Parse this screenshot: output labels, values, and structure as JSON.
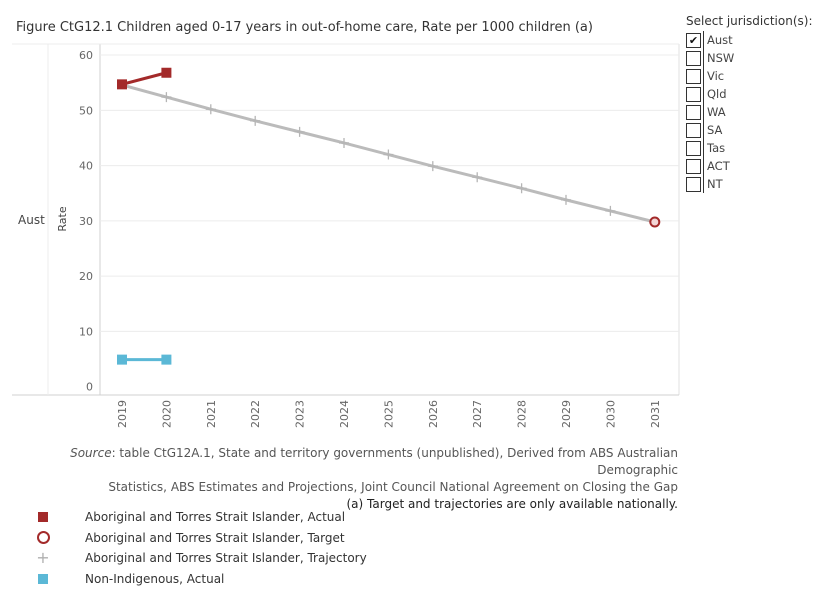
{
  "title": "Figure CtG12.1 Children aged 0-17 years in out-of-home care, Rate per 1000 children (a)",
  "row_label": "Aust",
  "filter": {
    "title": "Select jurisdiction(s):",
    "options": [
      {
        "label": "Aust",
        "checked": true
      },
      {
        "label": "NSW",
        "checked": false
      },
      {
        "label": "Vic",
        "checked": false
      },
      {
        "label": "Qld",
        "checked": false
      },
      {
        "label": "WA",
        "checked": false
      },
      {
        "label": "SA",
        "checked": false
      },
      {
        "label": "Tas",
        "checked": false
      },
      {
        "label": "ACT",
        "checked": false
      },
      {
        "label": "NT",
        "checked": false
      }
    ]
  },
  "notes": {
    "source_label": "Source",
    "source_text": ": table CtG12A.1, State and territory governments (unpublished), Derived from ABS Australian Demographic",
    "source_text2": "Statistics, ABS Estimates and Projections, Joint Council National Agreement on Closing the Gap",
    "footnote": "(a) Target and trajectories are only available nationally."
  },
  "legend": [
    {
      "label": "Aboriginal and Torres Strait Islander, Actual",
      "symbol": "square",
      "color": "#a32a2a"
    },
    {
      "label": "Aboriginal and Torres Strait Islander, Target",
      "symbol": "ring",
      "color": "#a32a2a"
    },
    {
      "label": "Aboriginal and Torres Strait Islander, Trajectory",
      "symbol": "plus",
      "color": "#b0b0b0"
    },
    {
      "label": "Non-Indigenous, Actual",
      "symbol": "square",
      "color": "#5bb8d6"
    }
  ],
  "chart_data": {
    "type": "line",
    "title": "Figure CtG12.1 Children aged 0-17 years in out-of-home care, Rate per 1000 children (a)",
    "xlabel": "",
    "ylabel": "Rate",
    "categories": [
      "2019",
      "2020",
      "2021",
      "2022",
      "2023",
      "2024",
      "2025",
      "2026",
      "2027",
      "2028",
      "2029",
      "2030",
      "2031"
    ],
    "yticks": [
      0,
      10,
      20,
      30,
      40,
      50,
      60
    ],
    "ylim": [
      -1.5,
      62
    ],
    "grid": true,
    "legend_position": "bottom-left",
    "series": [
      {
        "name": "Aboriginal and Torres Strait Islander, Trajectory",
        "kind": "trajectory",
        "color": "#bbbbbb",
        "values": [
          54.6,
          52.4,
          50.2,
          48.1,
          46.1,
          44.1,
          42.0,
          39.9,
          37.9,
          35.9,
          33.8,
          31.8,
          29.8
        ]
      },
      {
        "name": "Aboriginal and Torres Strait Islander, Actual",
        "kind": "actual",
        "color": "#a32a2a",
        "values": [
          54.7,
          56.8,
          null,
          null,
          null,
          null,
          null,
          null,
          null,
          null,
          null,
          null,
          null
        ]
      },
      {
        "name": "Non-Indigenous, Actual",
        "kind": "actual",
        "color": "#5bb8d6",
        "values": [
          4.9,
          4.9,
          null,
          null,
          null,
          null,
          null,
          null,
          null,
          null,
          null,
          null,
          null
        ]
      },
      {
        "name": "Aboriginal and Torres Strait Islander, Target",
        "kind": "target",
        "color": "#a32a2a",
        "values": [
          null,
          null,
          null,
          null,
          null,
          null,
          null,
          null,
          null,
          null,
          null,
          null,
          29.8
        ]
      }
    ]
  }
}
